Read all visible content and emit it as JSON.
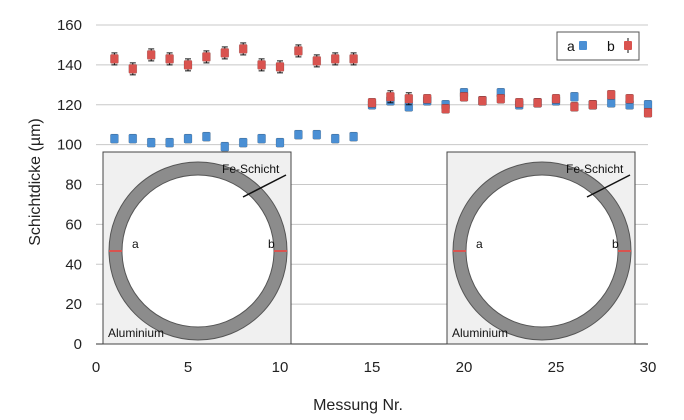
{
  "chart_data": {
    "type": "scatter",
    "xlabel": "Messung Nr.",
    "ylabel": "Schichtdicke (µm)",
    "xlim": [
      0,
      30
    ],
    "ylim": [
      0,
      160
    ],
    "xticks": [
      "0",
      "5",
      "10",
      "15",
      "20",
      "25",
      "30"
    ],
    "yticks": [
      "0",
      "20",
      "40",
      "60",
      "80",
      "100",
      "120",
      "140",
      "160"
    ],
    "grid": "horizontal",
    "legend": {
      "placement": "top-right",
      "entries": [
        "a",
        "b"
      ]
    },
    "series": [
      {
        "name": "a",
        "color": "#4a8fd4",
        "x": [
          1,
          2,
          3,
          4,
          5,
          6,
          7,
          8,
          9,
          10,
          11,
          12,
          13,
          14,
          15,
          16,
          17,
          18,
          19,
          20,
          21,
          22,
          23,
          24,
          25,
          26,
          27,
          28,
          29,
          30
        ],
        "y": [
          103,
          103,
          101,
          101,
          103,
          104,
          99,
          101,
          103,
          101,
          105,
          105,
          103,
          104,
          120,
          122,
          119,
          122,
          120,
          126,
          122,
          126,
          120,
          121,
          122,
          124,
          120,
          121,
          120,
          120
        ],
        "error": [
          2,
          2,
          2,
          2,
          2,
          2,
          2,
          2,
          2,
          2,
          2,
          2,
          2,
          2,
          2,
          2,
          2,
          2,
          2,
          2,
          2,
          2,
          2,
          2,
          2,
          2,
          2,
          2,
          2,
          2
        ]
      },
      {
        "name": "b",
        "color": "#d9534f",
        "x": [
          1,
          2,
          3,
          4,
          5,
          6,
          7,
          8,
          9,
          10,
          11,
          12,
          13,
          14,
          15,
          16,
          17,
          18,
          19,
          20,
          21,
          22,
          23,
          24,
          25,
          26,
          27,
          28,
          29,
          30
        ],
        "y": [
          143,
          138,
          145,
          143,
          140,
          144,
          146,
          148,
          140,
          139,
          147,
          142,
          143,
          143,
          121,
          124,
          123,
          123,
          118,
          124,
          122,
          123,
          121,
          121,
          123,
          119,
          120,
          125,
          123,
          116
        ],
        "error": [
          3,
          3,
          3,
          3,
          3,
          3,
          3,
          3,
          3,
          3,
          3,
          3,
          3,
          3,
          2,
          3,
          3,
          2,
          2,
          2,
          2,
          2,
          2,
          2,
          2,
          2,
          2,
          2,
          2,
          2
        ]
      }
    ],
    "insets": [
      {
        "layer_label": "Fe-Schicht",
        "substrate_label": "Aluminium",
        "point_a": "a",
        "point_b": "b"
      },
      {
        "layer_label": "Fe-Schicht",
        "substrate_label": "Aluminium",
        "point_a": "a",
        "point_b": "b"
      }
    ]
  }
}
